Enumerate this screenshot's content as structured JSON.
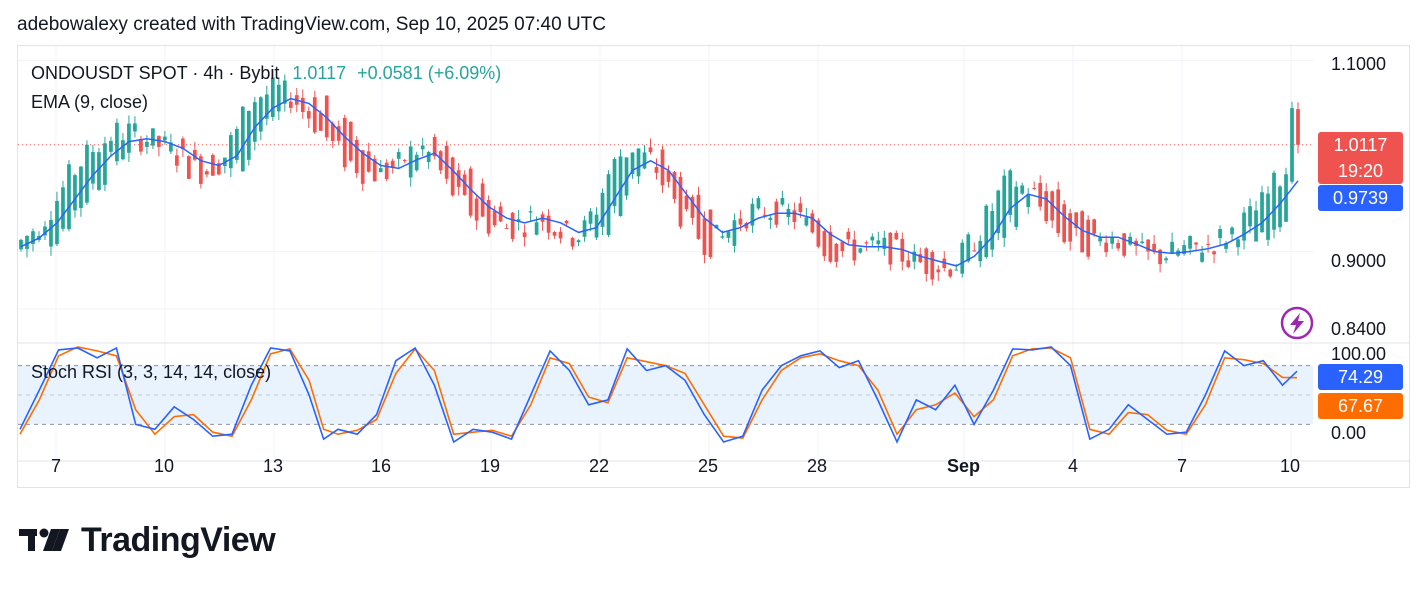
{
  "header": {
    "caption": "adebowalexy created with TradingView.com, Sep 10, 2025 07:40 UTC"
  },
  "legend": {
    "symbol": "ONDOUSDT SPOT · 4h · Bybit",
    "last": "1.0117",
    "change": "+0.0581 (+6.09%)",
    "ema": "EMA (9, close)",
    "stoch": "Stoch RSI (3, 3, 14, 14, close)"
  },
  "price_axis": {
    "ticks": [
      {
        "label": "1.1000",
        "value": 1.1
      },
      {
        "label": "0.9000",
        "value": 0.9
      },
      {
        "label": "0.8400",
        "value": 0.84
      }
    ],
    "last_price": "1.0117",
    "countdown": "19:20",
    "ema_value": "0.9739"
  },
  "stoch_axis": {
    "ticks": [
      {
        "label": "100.00",
        "value": 100
      },
      {
        "label": "0.00",
        "value": 0
      }
    ],
    "k_value": "74.29",
    "d_value": "67.67",
    "bands": [
      80,
      50,
      20
    ]
  },
  "time_axis": {
    "labels": [
      "7",
      "10",
      "13",
      "16",
      "19",
      "22",
      "25",
      "28",
      "Sep",
      "4",
      "7",
      "10"
    ],
    "bold": [
      "Sep"
    ]
  },
  "colors": {
    "up": "#26a69a",
    "down": "#ef5350",
    "ema": "#2962ff",
    "k_line": "#2962ff",
    "d_line": "#ff6d00",
    "band_fill": "#e9f3fd",
    "price_tag": "#ef5350",
    "ema_tag": "#2962ff",
    "d_tag": "#ff6d00",
    "flash_icon": "#9c27b0"
  },
  "icons": {
    "flash": "lightning-icon",
    "brand": "tradingview-logo-icon"
  },
  "brand": {
    "name": "TradingView"
  },
  "chart_data": {
    "type": "candlestick",
    "title": "ONDOUSDT SPOT · 4h · Bybit",
    "interval": "4h",
    "ylim": [
      0.82,
      1.115
    ],
    "x": [
      "7",
      "10",
      "13",
      "16",
      "19",
      "22",
      "25",
      "28",
      "Sep",
      "4",
      "7",
      "10"
    ],
    "last_price": 1.0117,
    "change": 0.0581,
    "change_pct": 6.09,
    "ema_last": 0.9739,
    "ema_path": [
      [
        0,
        0.905
      ],
      [
        3,
        0.914
      ],
      [
        6,
        0.93
      ],
      [
        9,
        0.955
      ],
      [
        12,
        0.98
      ],
      [
        15,
        1.0
      ],
      [
        18,
        1.015
      ],
      [
        21,
        1.018
      ],
      [
        24,
        1.015
      ],
      [
        27,
        1.008
      ],
      [
        30,
        0.995
      ],
      [
        33,
        0.99
      ],
      [
        36,
        1.0
      ],
      [
        39,
        1.03
      ],
      [
        42,
        1.05
      ],
      [
        45,
        1.06
      ],
      [
        48,
        1.055
      ],
      [
        51,
        1.04
      ],
      [
        54,
        1.02
      ],
      [
        57,
        1.003
      ],
      [
        60,
        0.99
      ],
      [
        63,
        0.987
      ],
      [
        66,
        0.996
      ],
      [
        69,
        1.003
      ],
      [
        72,
        0.985
      ],
      [
        75,
        0.965
      ],
      [
        78,
        0.947
      ],
      [
        81,
        0.935
      ],
      [
        84,
        0.93
      ],
      [
        87,
        0.935
      ],
      [
        90,
        0.93
      ],
      [
        93,
        0.92
      ],
      [
        96,
        0.925
      ],
      [
        99,
        0.955
      ],
      [
        102,
        0.985
      ],
      [
        105,
        0.995
      ],
      [
        108,
        0.985
      ],
      [
        111,
        0.96
      ],
      [
        114,
        0.935
      ],
      [
        117,
        0.92
      ],
      [
        120,
        0.925
      ],
      [
        123,
        0.935
      ],
      [
        126,
        0.94
      ],
      [
        129,
        0.94
      ],
      [
        132,
        0.935
      ],
      [
        135,
        0.918
      ],
      [
        138,
        0.907
      ],
      [
        141,
        0.905
      ],
      [
        144,
        0.905
      ],
      [
        147,
        0.902
      ],
      [
        150,
        0.895
      ],
      [
        153,
        0.89
      ],
      [
        156,
        0.885
      ],
      [
        159,
        0.895
      ],
      [
        162,
        0.915
      ],
      [
        165,
        0.945
      ],
      [
        168,
        0.96
      ],
      [
        171,
        0.955
      ],
      [
        174,
        0.937
      ],
      [
        177,
        0.922
      ],
      [
        180,
        0.915
      ],
      [
        183,
        0.915
      ],
      [
        186,
        0.908
      ],
      [
        189,
        0.9
      ],
      [
        192,
        0.898
      ],
      [
        195,
        0.9
      ],
      [
        198,
        0.903
      ],
      [
        201,
        0.908
      ],
      [
        204,
        0.918
      ],
      [
        207,
        0.93
      ],
      [
        210,
        0.95
      ],
      [
        213,
        0.974
      ]
    ],
    "stoch_rsi": {
      "k_last": 74.29,
      "d_last": 67.67,
      "k_path": [
        [
          0,
          15
        ],
        [
          4,
          55
        ],
        [
          8,
          96
        ],
        [
          12,
          98
        ],
        [
          16,
          88
        ],
        [
          20,
          98
        ],
        [
          24,
          20
        ],
        [
          28,
          15
        ],
        [
          32,
          38
        ],
        [
          36,
          25
        ],
        [
          40,
          8
        ],
        [
          44,
          10
        ],
        [
          48,
          60
        ],
        [
          52,
          98
        ],
        [
          56,
          95
        ],
        [
          60,
          50
        ],
        [
          63,
          5
        ],
        [
          66,
          15
        ],
        [
          70,
          10
        ],
        [
          74,
          30
        ],
        [
          78,
          85
        ],
        [
          82,
          98
        ],
        [
          86,
          60
        ],
        [
          90,
          2
        ],
        [
          94,
          15
        ],
        [
          98,
          12
        ],
        [
          102,
          5
        ],
        [
          106,
          50
        ],
        [
          110,
          95
        ],
        [
          114,
          75
        ],
        [
          118,
          40
        ],
        [
          122,
          45
        ],
        [
          126,
          97
        ],
        [
          130,
          75
        ],
        [
          134,
          80
        ],
        [
          138,
          65
        ],
        [
          142,
          30
        ],
        [
          146,
          2
        ],
        [
          150,
          8
        ],
        [
          154,
          55
        ],
        [
          158,
          80
        ],
        [
          162,
          90
        ],
        [
          166,
          95
        ],
        [
          170,
          78
        ],
        [
          174,
          85
        ],
        [
          178,
          45
        ],
        [
          182,
          2
        ],
        [
          186,
          45
        ],
        [
          190,
          35
        ],
        [
          194,
          60
        ],
        [
          198,
          20
        ],
        [
          202,
          55
        ],
        [
          206,
          97
        ],
        [
          210,
          96
        ],
        [
          214,
          99
        ],
        [
          218,
          80
        ],
        [
          222,
          5
        ],
        [
          226,
          15
        ],
        [
          230,
          40
        ],
        [
          234,
          25
        ],
        [
          238,
          10
        ],
        [
          242,
          12
        ],
        [
          246,
          50
        ],
        [
          250,
          95
        ],
        [
          254,
          80
        ],
        [
          258,
          85
        ],
        [
          262,
          60
        ],
        [
          265,
          74.29
        ]
      ],
      "d_path": [
        [
          0,
          10
        ],
        [
          4,
          45
        ],
        [
          8,
          90
        ],
        [
          12,
          99
        ],
        [
          16,
          95
        ],
        [
          20,
          90
        ],
        [
          24,
          35
        ],
        [
          28,
          10
        ],
        [
          32,
          28
        ],
        [
          36,
          30
        ],
        [
          40,
          12
        ],
        [
          44,
          8
        ],
        [
          48,
          45
        ],
        [
          52,
          92
        ],
        [
          56,
          97
        ],
        [
          60,
          65
        ],
        [
          63,
          15
        ],
        [
          66,
          10
        ],
        [
          70,
          14
        ],
        [
          74,
          25
        ],
        [
          78,
          72
        ],
        [
          82,
          97
        ],
        [
          86,
          75
        ],
        [
          90,
          10
        ],
        [
          94,
          12
        ],
        [
          98,
          14
        ],
        [
          102,
          8
        ],
        [
          106,
          40
        ],
        [
          110,
          88
        ],
        [
          114,
          82
        ],
        [
          118,
          48
        ],
        [
          122,
          42
        ],
        [
          126,
          88
        ],
        [
          130,
          84
        ],
        [
          134,
          80
        ],
        [
          138,
          72
        ],
        [
          142,
          40
        ],
        [
          146,
          8
        ],
        [
          150,
          6
        ],
        [
          154,
          45
        ],
        [
          158,
          75
        ],
        [
          162,
          88
        ],
        [
          166,
          92
        ],
        [
          170,
          85
        ],
        [
          174,
          80
        ],
        [
          178,
          55
        ],
        [
          182,
          10
        ],
        [
          186,
          35
        ],
        [
          190,
          40
        ],
        [
          194,
          52
        ],
        [
          198,
          28
        ],
        [
          202,
          45
        ],
        [
          206,
          90
        ],
        [
          210,
          97
        ],
        [
          214,
          98
        ],
        [
          218,
          88
        ],
        [
          222,
          15
        ],
        [
          226,
          10
        ],
        [
          230,
          32
        ],
        [
          234,
          30
        ],
        [
          238,
          14
        ],
        [
          242,
          10
        ],
        [
          246,
          40
        ],
        [
          250,
          88
        ],
        [
          254,
          86
        ],
        [
          258,
          82
        ],
        [
          262,
          68
        ],
        [
          265,
          67.67
        ]
      ]
    }
  }
}
